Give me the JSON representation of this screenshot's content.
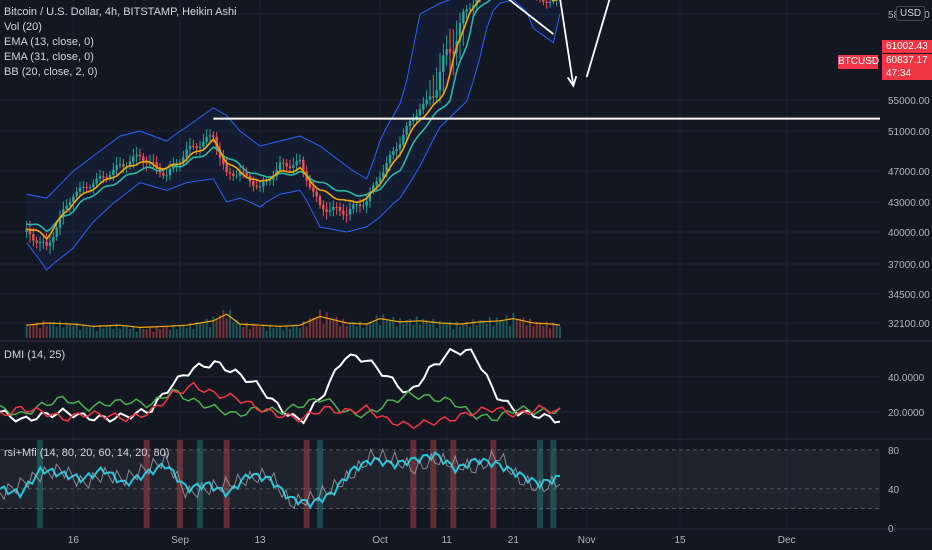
{
  "legend": {
    "symbol": "Bitcoin / U.S. Dollar, 4h, BITSTAMP, Heikin Ashi",
    "vol": "Vol (20)",
    "ema13": "EMA (13, close, 0)",
    "ema31": "EMA (31, close, 0)",
    "bb": "BB (20, close, 2, 0)"
  },
  "currency_badge": "USD",
  "symbol_tag": "BTCUSD",
  "price_tags": [
    "61002.43",
    "60837.17",
    "47:34"
  ],
  "dmi_title": "DMI (14, 25)",
  "rsi_title": "rsi+Mfi (14, 80, 20, 60, 14, 20, 80)",
  "colors": {
    "background": "#131722",
    "up": "#26a69a",
    "down": "#ef5350",
    "ema13": "#f7a600",
    "ema31": "#2cb5a8",
    "bb": "#2962ff",
    "dmi_plus": "#4caf50",
    "dmi_minus": "#f23645",
    "adx": "#ffffff",
    "rsi": "#26c6da",
    "mfi": "#b2b5be"
  },
  "chart_data": [
    {
      "type": "candlestick",
      "title": "Bitcoin / U.S. Dollar, 4h, BITSTAMP, Heikin Ashi",
      "x_ticks": [
        "16",
        "Sep",
        "13",
        "Oct",
        "11",
        "21",
        "Nov",
        "15",
        "Dec"
      ],
      "y_ticks": [
        "58000.00",
        "55000.00",
        "51000.00",
        "47000.00",
        "43000.00",
        "40000.00",
        "37000.00",
        "34500.00",
        "32100.00"
      ],
      "ylim": [
        30500,
        62500
      ],
      "x_dates": [
        "Aug 9",
        "Aug 12",
        "Aug 16",
        "Aug 19",
        "Aug 23",
        "Aug 26",
        "Aug 30",
        "Sep 2",
        "Sep 6",
        "Sep 8",
        "Sep 10",
        "Sep 13",
        "Sep 16",
        "Sep 19",
        "Sep 22",
        "Sep 26",
        "Sep 29",
        "Oct 1",
        "Oct 4",
        "Oct 7",
        "Oct 10",
        "Oct 13",
        "Oct 16",
        "Oct 19",
        "Oct 21",
        "Oct 24",
        "Oct 27",
        "Oct 28"
      ],
      "close": [
        40000,
        38500,
        44000,
        45500,
        47500,
        48500,
        46500,
        49000,
        50500,
        46500,
        46800,
        44800,
        47500,
        47800,
        42500,
        42000,
        43200,
        46500,
        50000,
        54000,
        56000,
        57500,
        60500,
        63500,
        63800,
        60500,
        59500,
        60837
      ],
      "ema13": [
        40500,
        39500,
        43000,
        44800,
        46800,
        48000,
        47200,
        48200,
        50000,
        48000,
        46800,
        45500,
        46800,
        47200,
        44500,
        43000,
        43300,
        45500,
        48800,
        52500,
        55000,
        57000,
        59800,
        62500,
        62800,
        61000,
        60000,
        60400
      ],
      "ema31": [
        41000,
        40200,
        42200,
        44000,
        45800,
        47200,
        47200,
        47800,
        49200,
        48500,
        47500,
        46300,
        46500,
        46800,
        45500,
        44200,
        43800,
        44800,
        47200,
        50800,
        53800,
        56200,
        58800,
        61500,
        62000,
        61200,
        60500,
        60600
      ],
      "bb_upper": [
        44000,
        43500,
        47000,
        48500,
        50500,
        51000,
        50000,
        51500,
        54000,
        53000,
        51000,
        49500,
        50000,
        50500,
        49500,
        47500,
        46000,
        50000,
        54500,
        58000,
        59500,
        60500,
        63000,
        65500,
        65500,
        64000,
        62500,
        62500
      ],
      "bb_lower": [
        39000,
        36500,
        38500,
        41000,
        43500,
        45500,
        44500,
        45500,
        46000,
        43000,
        43500,
        42500,
        44000,
        44500,
        40500,
        40000,
        40500,
        41500,
        43500,
        47500,
        51500,
        54000,
        56500,
        59500,
        60000,
        57500,
        57000,
        58000
      ],
      "volume": [
        0.4,
        0.5,
        0.45,
        0.35,
        0.4,
        0.3,
        0.35,
        0.4,
        0.6,
        0.9,
        0.45,
        0.4,
        0.35,
        0.4,
        0.8,
        0.5,
        0.45,
        0.7,
        0.55,
        0.6,
        0.5,
        0.45,
        0.55,
        0.6,
        0.7,
        0.5,
        0.45,
        0.4
      ],
      "annotations": {
        "horizontal_level": 52600,
        "channel_upper": [
          [
            "Oct 20",
            64400
          ],
          [
            "Oct 29",
            61500
          ]
        ],
        "channel_lower": [
          [
            "Oct 19",
            61000
          ],
          [
            "Oct 27",
            57300
          ]
        ],
        "arrow_down": [
          [
            "Oct 28",
            60200
          ],
          [
            "Oct 30",
            55500
          ]
        ],
        "arrow_up": [
          [
            "Nov 1",
            55800
          ],
          [
            "Nov 6",
            65000
          ]
        ]
      }
    },
    {
      "type": "line",
      "title": "DMI (14, 25)",
      "y_ticks": [
        "40.0000",
        "20.0000"
      ],
      "ylim": [
        5,
        60
      ],
      "series": [
        {
          "values": [
            20,
            15,
            18,
            20,
            17,
            16,
            18,
            21,
            36,
            45,
            48,
            42,
            35,
            22,
            14,
            30,
            52,
            50,
            40,
            30,
            45,
            55,
            54,
            30,
            20,
            18,
            15
          ]
        },
        {
          "values": [
            22,
            18,
            24,
            28,
            22,
            25,
            26,
            24,
            32,
            26,
            22,
            18,
            22,
            20,
            24,
            28,
            20,
            18,
            25,
            30,
            28,
            26,
            18,
            16,
            22,
            20,
            21
          ]
        },
        {
          "values": [
            18,
            22,
            20,
            16,
            19,
            18,
            16,
            20,
            30,
            35,
            30,
            28,
            22,
            18,
            16,
            22,
            20,
            22,
            15,
            12,
            14,
            16,
            20,
            22,
            18,
            22,
            20
          ]
        }
      ]
    },
    {
      "type": "line",
      "title": "rsi+Mfi (14, 80, 20, 60, 14, 20, 80)",
      "y_ticks": [
        "80",
        "40",
        "0"
      ],
      "ylim": [
        0,
        90
      ],
      "series": [
        {
          "values": [
            40,
            35,
            60,
            55,
            50,
            60,
            45,
            55,
            65,
            40,
            45,
            35,
            55,
            50,
            30,
            25,
            35,
            60,
            70,
            65,
            70,
            75,
            60,
            70,
            65,
            55,
            45,
            52
          ]
        },
        {
          "values": [
            35,
            45,
            55,
            60,
            45,
            55,
            50,
            60,
            70,
            35,
            40,
            45,
            50,
            55,
            25,
            30,
            40,
            55,
            75,
            70,
            60,
            70,
            65,
            60,
            75,
            50,
            40,
            48
          ]
        }
      ]
    }
  ]
}
